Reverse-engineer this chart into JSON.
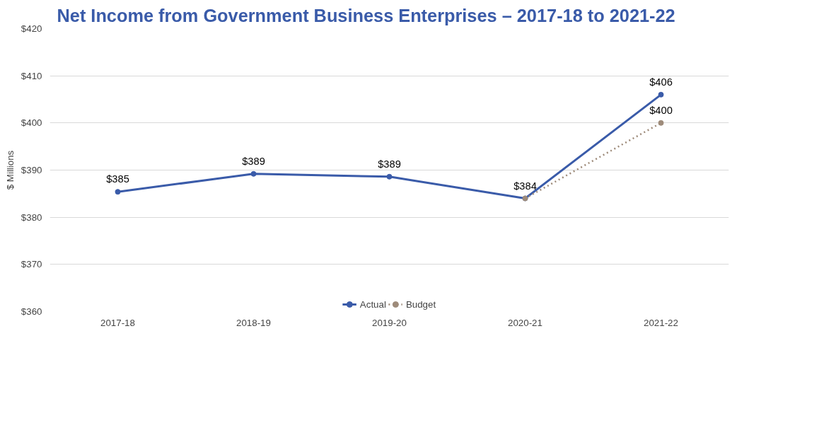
{
  "chart_data": {
    "type": "line",
    "title": "Net Income from Government Business Enterprises – 2017-18 to 2021-22",
    "ylabel": "$ Millions",
    "categories": [
      "2017-18",
      "2018-19",
      "2019-20",
      "2020-21",
      "2021-22"
    ],
    "series": [
      {
        "name": "Actual",
        "color": "#3a5ba9",
        "line_style": "solid",
        "values": [
          385.4,
          389.2,
          388.6,
          384,
          406
        ],
        "value_labels": [
          "$385",
          "$389",
          "$389",
          "$384",
          "$406"
        ]
      },
      {
        "name": "Budget",
        "color": "#9e8b7a",
        "line_style": "dotted",
        "values": [
          null,
          null,
          null,
          384,
          400
        ],
        "value_labels": [
          null,
          null,
          null,
          null,
          "$400"
        ]
      }
    ],
    "ylim": [
      360,
      420
    ],
    "yticks": [
      {
        "value": 360,
        "label": "$360"
      },
      {
        "value": 370,
        "label": "$370"
      },
      {
        "value": 380,
        "label": "$380"
      },
      {
        "value": 390,
        "label": "$390"
      },
      {
        "value": 400,
        "label": "$400"
      },
      {
        "value": 410,
        "label": "$410"
      },
      {
        "value": 420,
        "label": "$420"
      }
    ],
    "grid": "y",
    "legend": "bottom",
    "marker": "circle"
  }
}
